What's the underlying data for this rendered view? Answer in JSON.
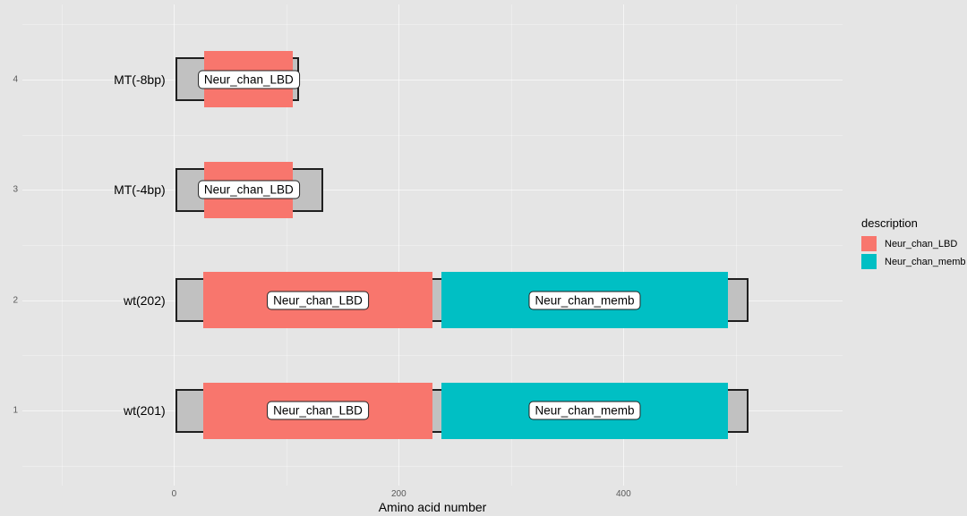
{
  "chart_data": {
    "type": "bar",
    "subtype": "protein-domain-schematic",
    "xlabel": "Amino acid number",
    "xlim": [
      -135,
      595
    ],
    "ylim": [
      0.32,
      4.68
    ],
    "x_ticks": [
      0,
      200,
      400
    ],
    "x_tick_labels": [
      "0",
      "200",
      "400"
    ],
    "x_minor_ticks": [
      -100,
      100,
      300,
      500
    ],
    "y_major": [
      1,
      2,
      3,
      4
    ],
    "y_minor": [
      0.5,
      1.5,
      2.5,
      3.5,
      4.5
    ],
    "grid": true,
    "legend_position": "right",
    "colors": {
      "Neur_chan_LBD": "#F8766D",
      "Neur_chan_memb": "#00BFC4",
      "chain_fill": "#C1C1C1",
      "chain_outline": "#1F1F1F",
      "background": "#E5E5E5"
    },
    "rows": [
      {
        "order": 4,
        "entry_name": "MT(-8bp)",
        "chain": {
          "begin": 1,
          "end": 111
        },
        "domains": [
          {
            "description": "Neur_chan_LBD",
            "begin": 27,
            "end": 106
          }
        ]
      },
      {
        "order": 3,
        "entry_name": "MT(-4bp)",
        "chain": {
          "begin": 1,
          "end": 133
        },
        "domains": [
          {
            "description": "Neur_chan_LBD",
            "begin": 27,
            "end": 106
          }
        ]
      },
      {
        "order": 2,
        "entry_name": "wt(202)",
        "chain": {
          "begin": 1,
          "end": 511
        },
        "domains": [
          {
            "description": "Neur_chan_LBD",
            "begin": 26,
            "end": 230
          },
          {
            "description": "Neur_chan_memb",
            "begin": 238,
            "end": 493
          }
        ]
      },
      {
        "order": 1,
        "entry_name": "wt(201)",
        "chain": {
          "begin": 1,
          "end": 511
        },
        "domains": [
          {
            "description": "Neur_chan_LBD",
            "begin": 26,
            "end": 230
          },
          {
            "description": "Neur_chan_memb",
            "begin": 238,
            "end": 493
          }
        ]
      }
    ],
    "legend": {
      "title": "description",
      "entries": [
        {
          "label": "Neur_chan_LBD",
          "color": "#F8766D"
        },
        {
          "label": "Neur_chan_memb",
          "color": "#00BFC4"
        }
      ]
    }
  }
}
